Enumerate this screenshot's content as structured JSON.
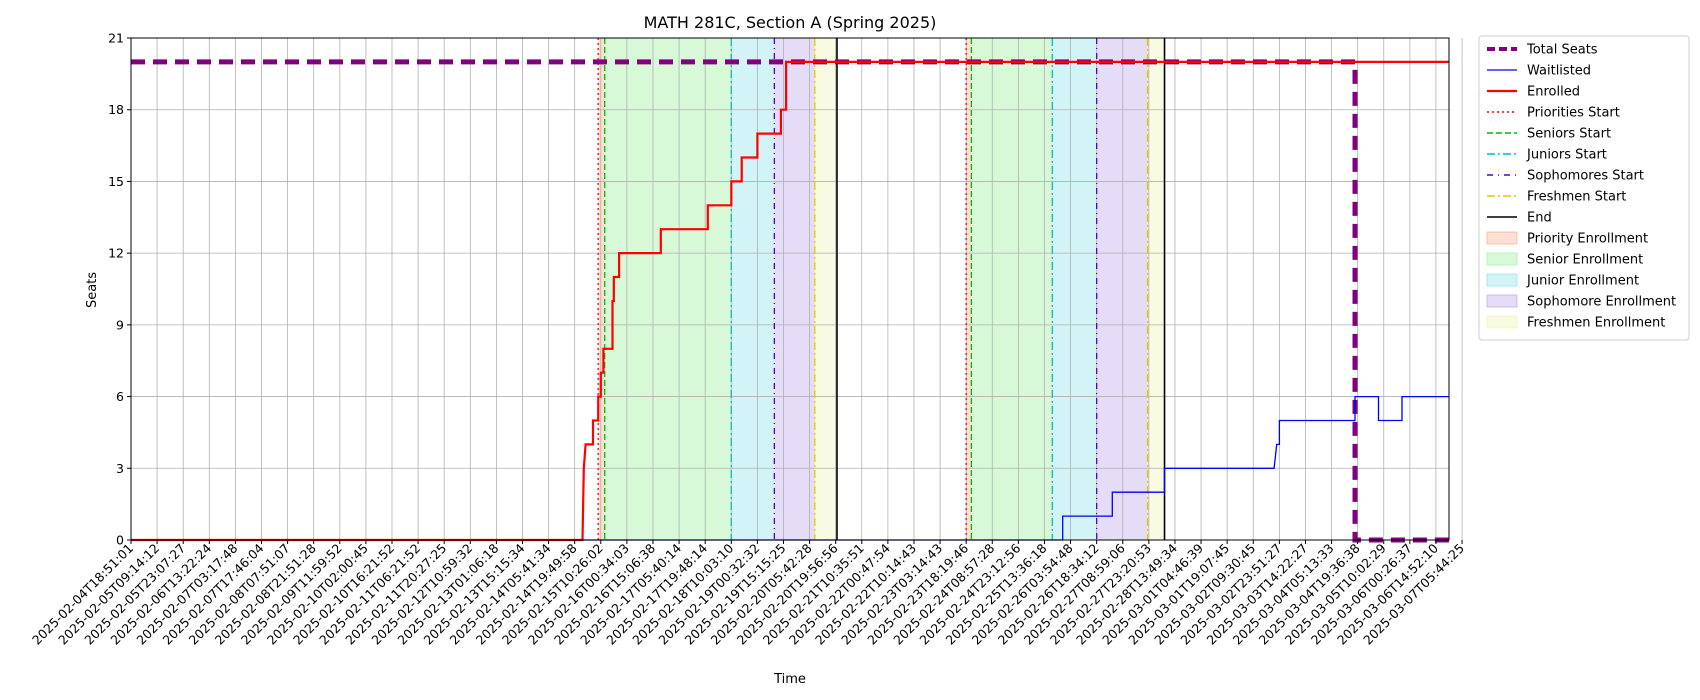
{
  "chart_data": {
    "type": "line",
    "title": "MATH 281C, Section A (Spring 2025)",
    "xlabel": "Time",
    "ylabel": "Seats",
    "ylim": [
      0,
      21
    ],
    "yticks": [
      0,
      3,
      6,
      9,
      12,
      15,
      18,
      21
    ],
    "grid": true,
    "legend_position": "outside right",
    "x_tick_labels": [
      "2025-02-04T18:51:01",
      "2025-02-05T09:14:12",
      "2025-02-05T23:07:27",
      "2025-02-06T13:22:24",
      "2025-02-07T03:17:48",
      "2025-02-07T17:46:04",
      "2025-02-08T07:51:07",
      "2025-02-08T21:51:28",
      "2025-02-09T11:59:52",
      "2025-02-10T02:00:45",
      "2025-02-10T16:21:52",
      "2025-02-11T06:21:52",
      "2025-02-11T20:27:25",
      "2025-02-12T10:59:32",
      "2025-02-13T01:06:18",
      "2025-02-13T15:15:34",
      "2025-02-14T05:41:34",
      "2025-02-14T19:49:58",
      "2025-02-15T10:26:02",
      "2025-02-16T00:34:03",
      "2025-02-16T15:06:38",
      "2025-02-17T05:40:14",
      "2025-02-17T19:48:14",
      "2025-02-18T10:03:10",
      "2025-02-19T00:32:32",
      "2025-02-19T15:15:25",
      "2025-02-20T05:42:28",
      "2025-02-20T19:56:56",
      "2025-02-21T10:35:51",
      "2025-02-22T00:47:54",
      "2025-02-22T10:14:43",
      "2025-02-23T03:14:43",
      "2025-02-23T18:19:46",
      "2025-02-24T08:57:28",
      "2025-02-24T23:12:56",
      "2025-02-25T13:36:18",
      "2025-02-26T03:54:48",
      "2025-02-26T18:34:12",
      "2025-02-27T08:59:06",
      "2025-02-27T23:20:53",
      "2025-02-28T13:49:34",
      "2025-03-01T04:46:39",
      "2025-03-01T19:07:45",
      "2025-03-02T09:30:45",
      "2025-03-02T23:51:27",
      "2025-03-03T14:22:27",
      "2025-03-04T05:13:33",
      "2025-03-04T19:36:38",
      "2025-03-05T10:02:29",
      "2025-03-06T00:26:37",
      "2025-03-06T14:52:10",
      "2025-03-07T05:44:25"
    ],
    "x_index_range": [
      0,
      50.5
    ],
    "shaded_regions": [
      {
        "name": "Priority Enrollment",
        "color": "#f4a582",
        "from": 17.9,
        "to": 18.15
      },
      {
        "name": "Senior Enrollment",
        "color": "#90ee90",
        "from": 18.15,
        "to": 23.0
      },
      {
        "name": "Junior Enrollment",
        "color": "#7fdfe8",
        "from": 23.0,
        "to": 24.65
      },
      {
        "name": "Sophomore Enrollment",
        "color": "#b59ae8",
        "from": 24.65,
        "to": 26.2
      },
      {
        "name": "Freshmen Enrollment",
        "color": "#ecf0a8",
        "from": 26.2,
        "to": 27.05
      },
      {
        "name": "Priority Enrollment",
        "color": "#f4a582",
        "from": 32.0,
        "to": 32.2
      },
      {
        "name": "Senior Enrollment",
        "color": "#90ee90",
        "from": 32.2,
        "to": 35.3
      },
      {
        "name": "Junior Enrollment",
        "color": "#7fdfe8",
        "from": 35.3,
        "to": 37.0
      },
      {
        "name": "Sophomore Enrollment",
        "color": "#b59ae8",
        "from": 37.0,
        "to": 38.95
      },
      {
        "name": "Freshmen Enrollment",
        "color": "#ecf0a8",
        "from": 38.95,
        "to": 39.6
      }
    ],
    "vertical_lines": [
      {
        "name": "Priorities Start",
        "x": 17.9,
        "color": "#ff0000",
        "dash": "2,3",
        "width": 1.3
      },
      {
        "name": "Seniors Start",
        "x": 18.15,
        "color": "#00bb00",
        "dash": "6,3",
        "width": 1.3
      },
      {
        "name": "Juniors Start",
        "x": 23.0,
        "color": "#00bfbf",
        "dash": "8,3,2,3",
        "width": 1.3
      },
      {
        "name": "Sophomores Start",
        "x": 24.65,
        "color": "#5500cc",
        "dash": "6,4,1,4",
        "width": 1.3
      },
      {
        "name": "Freshmen Start",
        "x": 26.2,
        "color": "#e6c800",
        "dash": "8,3,2,3",
        "width": 1.3
      },
      {
        "name": "End",
        "x": 27.05,
        "color": "#000000",
        "dash": "",
        "width": 1.6
      },
      {
        "name": "Priorities Start",
        "x": 32.0,
        "color": "#ff0000",
        "dash": "2,3",
        "width": 1.3
      },
      {
        "name": "Seniors Start",
        "x": 32.2,
        "color": "#00bb00",
        "dash": "6,3",
        "width": 1.3
      },
      {
        "name": "Juniors Start",
        "x": 35.3,
        "color": "#00bfbf",
        "dash": "8,3,2,3",
        "width": 1.3
      },
      {
        "name": "Sophomores Start",
        "x": 37.0,
        "color": "#5500cc",
        "dash": "6,4,1,4",
        "width": 1.3
      },
      {
        "name": "Freshmen Start",
        "x": 38.95,
        "color": "#e6c800",
        "dash": "8,3,2,3",
        "width": 1.3
      },
      {
        "name": "End",
        "x": 39.6,
        "color": "#000000",
        "dash": "",
        "width": 1.6
      }
    ],
    "series": [
      {
        "name": "Total Seats",
        "color": "#800080",
        "style": "dashed",
        "points": [
          [
            0,
            20
          ],
          [
            46.9,
            20
          ],
          [
            46.9,
            0
          ],
          [
            50.5,
            0
          ]
        ]
      },
      {
        "name": "Waitlisted",
        "color": "#0000ff",
        "style": "solid",
        "points": [
          [
            0,
            0
          ],
          [
            35.7,
            0
          ],
          [
            35.7,
            1
          ],
          [
            37.6,
            1
          ],
          [
            37.6,
            2
          ],
          [
            39.6,
            2
          ],
          [
            39.6,
            3
          ],
          [
            43.8,
            3
          ],
          [
            43.9,
            4
          ],
          [
            44.0,
            4
          ],
          [
            44.0,
            5
          ],
          [
            46.9,
            5
          ],
          [
            46.9,
            6
          ],
          [
            47.8,
            6
          ],
          [
            47.8,
            5
          ],
          [
            48.7,
            5
          ],
          [
            48.7,
            6
          ],
          [
            50.5,
            6
          ]
        ]
      },
      {
        "name": "Enrolled",
        "color": "#ff0000",
        "style": "solid",
        "points": [
          [
            0,
            0
          ],
          [
            17.3,
            0
          ],
          [
            17.35,
            3
          ],
          [
            17.42,
            4
          ],
          [
            17.7,
            4
          ],
          [
            17.7,
            5
          ],
          [
            17.9,
            5
          ],
          [
            17.9,
            6
          ],
          [
            18.0,
            6
          ],
          [
            18.0,
            7
          ],
          [
            18.1,
            7
          ],
          [
            18.1,
            8
          ],
          [
            18.45,
            8
          ],
          [
            18.45,
            10
          ],
          [
            18.5,
            10
          ],
          [
            18.5,
            11
          ],
          [
            18.7,
            11
          ],
          [
            18.7,
            12
          ],
          [
            20.3,
            12
          ],
          [
            20.3,
            13
          ],
          [
            22.1,
            13
          ],
          [
            22.1,
            14
          ],
          [
            23.0,
            14
          ],
          [
            23.0,
            15
          ],
          [
            23.4,
            15
          ],
          [
            23.4,
            16
          ],
          [
            24.0,
            16
          ],
          [
            24.0,
            17
          ],
          [
            24.9,
            17
          ],
          [
            24.9,
            18
          ],
          [
            25.1,
            18
          ],
          [
            25.1,
            20
          ],
          [
            50.5,
            20
          ]
        ]
      }
    ],
    "legend": [
      {
        "label": "Total Seats",
        "kind": "line",
        "color": "#800080",
        "dash": "8,4",
        "width": 4
      },
      {
        "label": "Waitlisted",
        "kind": "line",
        "color": "#0000ff",
        "dash": "",
        "width": 1.3
      },
      {
        "label": "Enrolled",
        "kind": "line",
        "color": "#ff0000",
        "dash": "",
        "width": 2.2
      },
      {
        "label": "Priorities Start",
        "kind": "line",
        "color": "#ff0000",
        "dash": "2,3",
        "width": 1.4
      },
      {
        "label": "Seniors Start",
        "kind": "line",
        "color": "#00bb00",
        "dash": "6,3",
        "width": 1.4
      },
      {
        "label": "Juniors Start",
        "kind": "line",
        "color": "#00bfbf",
        "dash": "8,3,2,3",
        "width": 1.4
      },
      {
        "label": "Sophomores Start",
        "kind": "line",
        "color": "#5500cc",
        "dash": "6,5,1,5",
        "width": 1.6
      },
      {
        "label": "Freshmen Start",
        "kind": "line",
        "color": "#e6c800",
        "dash": "8,3,2,3",
        "width": 1.4
      },
      {
        "label": "End",
        "kind": "line",
        "color": "#000000",
        "dash": "",
        "width": 1.6
      },
      {
        "label": "Priority Enrollment",
        "kind": "patch",
        "color": "#f4a582"
      },
      {
        "label": "Senior Enrollment",
        "kind": "patch",
        "color": "#90ee90"
      },
      {
        "label": "Junior Enrollment",
        "kind": "patch",
        "color": "#7fdfe8"
      },
      {
        "label": "Sophomore Enrollment",
        "kind": "patch",
        "color": "#b59ae8"
      },
      {
        "label": "Freshmen Enrollment",
        "kind": "patch",
        "color": "#ecf0a8"
      }
    ]
  }
}
